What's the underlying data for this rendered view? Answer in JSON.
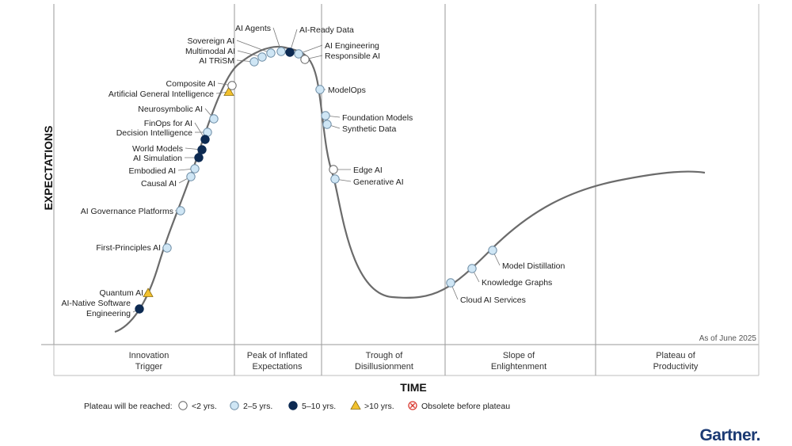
{
  "y_axis_label": "EXPECTATIONS",
  "x_axis_label": "TIME",
  "as_of": "As of June 2025",
  "brand": "Gartner.",
  "phases": [
    {
      "line1": "Innovation",
      "line2": "Trigger"
    },
    {
      "line1": "Peak of Inflated",
      "line2": "Expectations"
    },
    {
      "line1": "Trough of",
      "line2": "Disillusionment"
    },
    {
      "line1": "Slope of",
      "line2": "Enlightenment"
    },
    {
      "line1": "Plateau of",
      "line2": "Productivity"
    }
  ],
  "legend": {
    "title": "Plateau will be reached:",
    "items": [
      {
        "key": "lt2",
        "label": "<2 yrs."
      },
      {
        "key": "2to5",
        "label": "2–5 yrs."
      },
      {
        "key": "5to10",
        "label": "5–10 yrs."
      },
      {
        "key": "gt10",
        "label": ">10 yrs."
      },
      {
        "key": "obsolete",
        "label": "Obsolete before plateau"
      }
    ]
  },
  "colors": {
    "lt2": "#ffffff",
    "2to5": "#cfe6f5",
    "5to10": "#0d2a52",
    "gt10": "#f2c12e",
    "obsolete": "#d9382f",
    "curve": "#6b6b6b",
    "divider": "#9a9a9a"
  },
  "technologies": [
    {
      "name": "AI-Native Software Engineering",
      "lines": [
        "AI-Native Software",
        "Engineering"
      ],
      "category": "5to10"
    },
    {
      "name": "Quantum AI",
      "lines": [
        "Quantum AI"
      ],
      "category": "gt10"
    },
    {
      "name": "First-Principles AI",
      "lines": [
        "First-Principles AI"
      ],
      "category": "2to5"
    },
    {
      "name": "AI Governance Platforms",
      "lines": [
        "AI Governance Platforms"
      ],
      "category": "2to5"
    },
    {
      "name": "Causal AI",
      "lines": [
        "Causal AI"
      ],
      "category": "2to5"
    },
    {
      "name": "Embodied AI",
      "lines": [
        "Embodied AI"
      ],
      "category": "2to5"
    },
    {
      "name": "AI Simulation",
      "lines": [
        "AI Simulation"
      ],
      "category": "5to10"
    },
    {
      "name": "World Models",
      "lines": [
        "World Models"
      ],
      "category": "5to10"
    },
    {
      "name": "Decision Intelligence",
      "lines": [
        "Decision Intelligence"
      ],
      "category": "2to5"
    },
    {
      "name": "FinOps for AI",
      "lines": [
        "FinOps for AI"
      ],
      "category": "5to10"
    },
    {
      "name": "Neurosymbolic AI",
      "lines": [
        "Neurosymbolic AI"
      ],
      "category": "2to5"
    },
    {
      "name": "Artificial General Intelligence",
      "lines": [
        "Artificial General Intelligence"
      ],
      "category": "gt10"
    },
    {
      "name": "Composite AI",
      "lines": [
        "Composite AI"
      ],
      "category": "lt2"
    },
    {
      "name": "AI TRiSM",
      "lines": [
        "AI TRiSM"
      ],
      "category": "2to5"
    },
    {
      "name": "Multimodal AI",
      "lines": [
        "Multimodal AI"
      ],
      "category": "2to5"
    },
    {
      "name": "Sovereign AI",
      "lines": [
        "Sovereign AI"
      ],
      "category": "2to5"
    },
    {
      "name": "AI Agents",
      "lines": [
        "AI Agents"
      ],
      "category": "2to5"
    },
    {
      "name": "AI-Ready Data",
      "lines": [
        "AI-Ready Data"
      ],
      "category": "5to10"
    },
    {
      "name": "AI Engineering",
      "lines": [
        "AI Engineering"
      ],
      "category": "2to5"
    },
    {
      "name": "Responsible AI",
      "lines": [
        "Responsible AI"
      ],
      "category": "lt2"
    },
    {
      "name": "ModelOps",
      "lines": [
        "ModelOps"
      ],
      "category": "2to5"
    },
    {
      "name": "Foundation Models",
      "lines": [
        "Foundation Models"
      ],
      "category": "2to5"
    },
    {
      "name": "Synthetic Data",
      "lines": [
        "Synthetic Data"
      ],
      "category": "2to5"
    },
    {
      "name": "Edge AI",
      "lines": [
        "Edge AI"
      ],
      "category": "lt2"
    },
    {
      "name": "Generative AI",
      "lines": [
        "Generative AI"
      ],
      "category": "2to5"
    },
    {
      "name": "Cloud AI Services",
      "lines": [
        "Cloud AI Services"
      ],
      "category": "2to5"
    },
    {
      "name": "Knowledge Graphs",
      "lines": [
        "Knowledge Graphs"
      ],
      "category": "2to5"
    },
    {
      "name": "Model Distillation",
      "lines": [
        "Model Distillation"
      ],
      "category": "2to5"
    }
  ]
}
